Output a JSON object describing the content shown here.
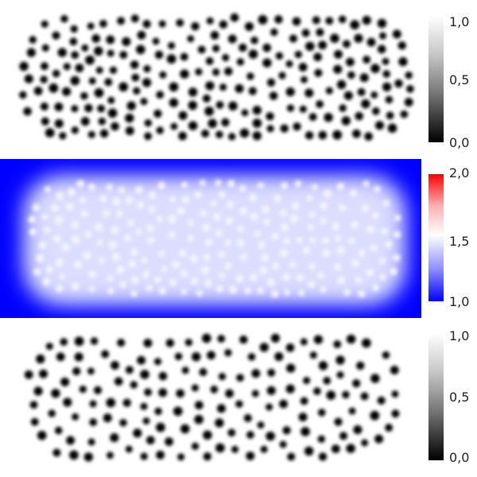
{
  "panels": {
    "top": {
      "colorbar": {
        "colormap": "gray",
        "range": [
          0.0,
          1.0
        ],
        "ticks": [
          "1,0",
          "0,5",
          "0,0"
        ]
      },
      "colors": {
        "background": "#ffffff",
        "dots": "#000000"
      }
    },
    "middle": {
      "colorbar": {
        "colormap": "blue-white-red",
        "range": [
          1.0,
          2.0
        ],
        "ticks": [
          "2,0",
          "1,5",
          "1,0"
        ]
      },
      "colors": {
        "outside": "#0000ff",
        "inside": "#d6d9ff"
      }
    },
    "bottom": {
      "colorbar": {
        "colormap": "gray",
        "range": [
          0.0,
          1.0
        ],
        "ticks": [
          "1,0",
          "0,5",
          "0,0"
        ]
      },
      "colors": {
        "background": "#ffffff",
        "dots": "#000000"
      }
    }
  }
}
